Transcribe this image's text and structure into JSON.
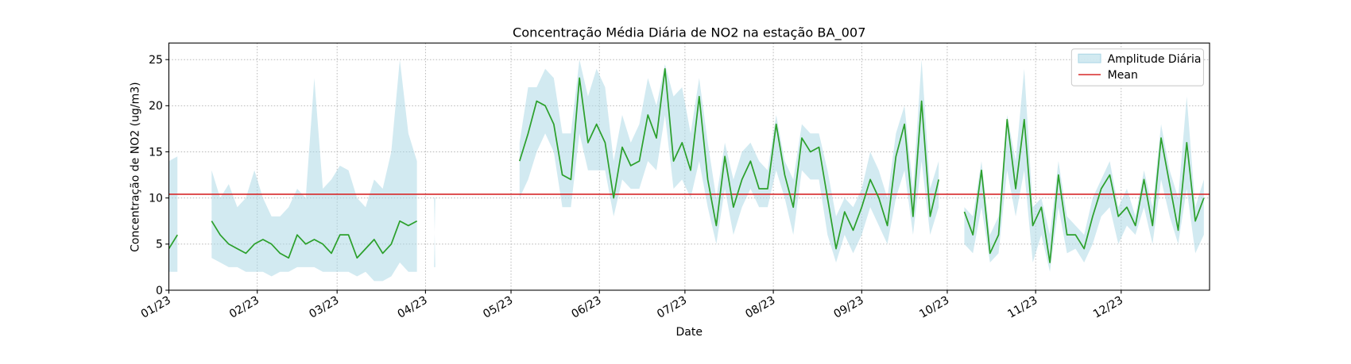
{
  "chart_data": {
    "type": "line",
    "title": "Concentração Média Diária de NO2 na estação BA_007",
    "xlabel": "Date",
    "ylabel": "Concentração de NO2 (ug/m3)",
    "x": [
      0,
      3,
      6,
      9,
      12,
      15,
      18,
      21,
      24,
      27,
      30,
      33,
      36,
      39,
      42,
      45,
      48,
      51,
      54,
      57,
      60,
      63,
      66,
      69,
      72,
      75,
      78,
      81,
      84,
      87,
      90,
      93,
      96,
      99,
      102,
      105,
      108,
      111,
      114,
      117,
      120,
      123,
      126,
      129,
      132,
      135,
      138,
      141,
      144,
      147,
      150,
      153,
      156,
      159,
      162,
      165,
      168,
      171,
      174,
      177,
      180,
      183,
      186,
      189,
      192,
      195,
      198,
      201,
      204,
      207,
      210,
      213,
      216,
      219,
      222,
      225,
      228,
      231,
      234,
      237,
      240,
      243,
      246,
      249,
      252,
      255,
      258,
      261,
      264,
      267,
      270,
      273,
      276,
      279,
      282,
      285,
      288,
      291,
      294,
      297,
      300,
      303,
      306,
      309,
      312,
      315,
      318,
      321,
      324,
      327,
      330,
      333,
      336,
      339,
      342,
      345,
      348,
      351,
      354,
      357,
      360,
      363
    ],
    "series": [
      {
        "color": "#2ca02c",
        "values": [
          4.5,
          6,
          null,
          null,
          null,
          7.5,
          6,
          5,
          4.5,
          4,
          5,
          5.5,
          5,
          4,
          3.5,
          6,
          5,
          5.5,
          5,
          4,
          6,
          6,
          3.5,
          4.5,
          5.5,
          4,
          5,
          7.5,
          7,
          7.5,
          null,
          6.5,
          null,
          null,
          null,
          null,
          null,
          null,
          null,
          null,
          null,
          14,
          17,
          20.5,
          20,
          18,
          12.5,
          12,
          23,
          16,
          18,
          16,
          10,
          15.5,
          13.5,
          14,
          19,
          16.5,
          24,
          14,
          16,
          13,
          21,
          12,
          7,
          14.5,
          9,
          12,
          14,
          11,
          11,
          18,
          12.5,
          9,
          16.5,
          15,
          15.5,
          10,
          4.5,
          8.5,
          6.5,
          9,
          12,
          10,
          7,
          14.5,
          18,
          8,
          20.5,
          8,
          12,
          null,
          null,
          8.5,
          6,
          13,
          4,
          6,
          18.5,
          11,
          18.5,
          7,
          9,
          3,
          12.5,
          6,
          6,
          4.5,
          8,
          11,
          12.5,
          8,
          9,
          7,
          12,
          7,
          16.5,
          11.5,
          6.5,
          16,
          7.5,
          10
        ]
      }
    ],
    "band": {
      "name": "Amplitude Diária",
      "color": "#add8e6",
      "lower": [
        2,
        2,
        null,
        null,
        null,
        3.5,
        3,
        2.5,
        2.5,
        2,
        2,
        2,
        1.5,
        2,
        2,
        2.5,
        2.5,
        2.5,
        2,
        2,
        2,
        2,
        1.5,
        2,
        1,
        1,
        1.5,
        3,
        2,
        2,
        null,
        2.5,
        null,
        null,
        null,
        null,
        null,
        null,
        null,
        null,
        null,
        10,
        12,
        15,
        17,
        15,
        9,
        9,
        17,
        13,
        13,
        13,
        8,
        12,
        11,
        11,
        14,
        13,
        19,
        11,
        12,
        10,
        14,
        9,
        5,
        11,
        6,
        9,
        11,
        9,
        9,
        13,
        10,
        6,
        13,
        12,
        12,
        6,
        3,
        6,
        4,
        6,
        9,
        7,
        5,
        10,
        13,
        6,
        14,
        6,
        9,
        null,
        null,
        5,
        4,
        9,
        3,
        4,
        13,
        8,
        13,
        3,
        6,
        2,
        9,
        4,
        4.5,
        3,
        5,
        8,
        9,
        5,
        7,
        6,
        9,
        5,
        12,
        8,
        5,
        11,
        4,
        6
      ],
      "upper": [
        14,
        14.5,
        null,
        null,
        null,
        13,
        10,
        11.5,
        9,
        10,
        13,
        10,
        8,
        8,
        9,
        11,
        10,
        23,
        11,
        12,
        13.5,
        13,
        10,
        9,
        12,
        11,
        15,
        25,
        17,
        14,
        null,
        10,
        null,
        null,
        null,
        null,
        null,
        null,
        null,
        null,
        null,
        16,
        22,
        22,
        24,
        23,
        17,
        17,
        25,
        21,
        24,
        22,
        14,
        19,
        16,
        18,
        23,
        20,
        24.5,
        21,
        22,
        17,
        23,
        16,
        10,
        16,
        12,
        15,
        16,
        14,
        13,
        19,
        14,
        12,
        18,
        17,
        17,
        13,
        8,
        10,
        9,
        11,
        15,
        13,
        10,
        17,
        20,
        11,
        25,
        11,
        14,
        null,
        null,
        9,
        8,
        14,
        6,
        8,
        19,
        14,
        24,
        9,
        10,
        6,
        14,
        8,
        7,
        6,
        10,
        12,
        14,
        9,
        11,
        8,
        13,
        9,
        18,
        13,
        10,
        21,
        9,
        12
      ]
    },
    "hlines": [
      {
        "name": "Mean",
        "color": "#d62728",
        "value": 10.4
      }
    ],
    "xlim": [
      0,
      365
    ],
    "ylim": [
      0,
      26.8
    ],
    "xticks": [
      {
        "value": 0,
        "label": "01/23"
      },
      {
        "value": 31,
        "label": "02/23"
      },
      {
        "value": 59,
        "label": "03/23"
      },
      {
        "value": 90,
        "label": "04/23"
      },
      {
        "value": 120,
        "label": "05/23"
      },
      {
        "value": 151,
        "label": "06/23"
      },
      {
        "value": 181,
        "label": "07/23"
      },
      {
        "value": 212,
        "label": "08/23"
      },
      {
        "value": 243,
        "label": "09/23"
      },
      {
        "value": 273,
        "label": "10/23"
      },
      {
        "value": 304,
        "label": "11/23"
      },
      {
        "value": 334,
        "label": "12/23"
      }
    ],
    "yticks": [
      0,
      5,
      10,
      15,
      20,
      25
    ],
    "grid": true,
    "legend": "upper right"
  }
}
